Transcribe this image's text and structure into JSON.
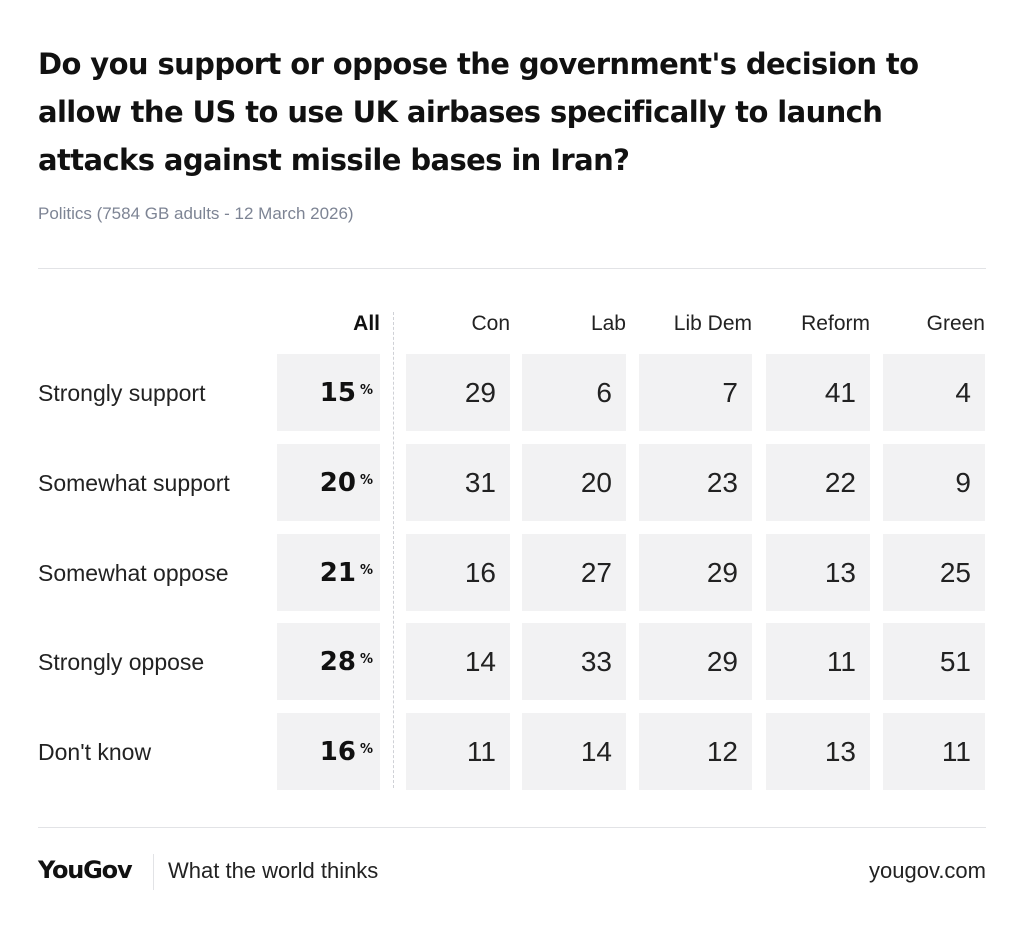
{
  "header": {
    "title": "Do you support or oppose the government's decision to allow the US to use UK airbases specifically to launch attacks against missile bases in Iran?",
    "subtitle": "Politics (7584 GB adults - 12 March 2026)"
  },
  "footer": {
    "logo": "YouGov",
    "tagline": "What the world thinks",
    "site": "yougov.com"
  },
  "colors": {
    "cell_bg": "#f2f2f3",
    "subtitle": "#7d8494",
    "text": "#111111"
  },
  "chart_data": {
    "type": "table",
    "title": "Do you support or oppose the government's decision to allow the US to use UK airbases specifically to launch attacks against missile bases in Iran?",
    "columns": [
      "All",
      "Con",
      "Lab",
      "Lib Dem",
      "Reform",
      "Green"
    ],
    "percent_sign": "%",
    "rows": [
      {
        "label": "Strongly support",
        "values": [
          15,
          29,
          6,
          7,
          41,
          4
        ]
      },
      {
        "label": "Somewhat support",
        "values": [
          20,
          31,
          20,
          23,
          22,
          9
        ]
      },
      {
        "label": "Somewhat oppose",
        "values": [
          21,
          16,
          27,
          29,
          13,
          25
        ]
      },
      {
        "label": "Strongly oppose",
        "values": [
          28,
          14,
          33,
          29,
          11,
          51
        ]
      },
      {
        "label": "Don't know",
        "values": [
          16,
          11,
          14,
          12,
          13,
          11
        ]
      }
    ]
  }
}
